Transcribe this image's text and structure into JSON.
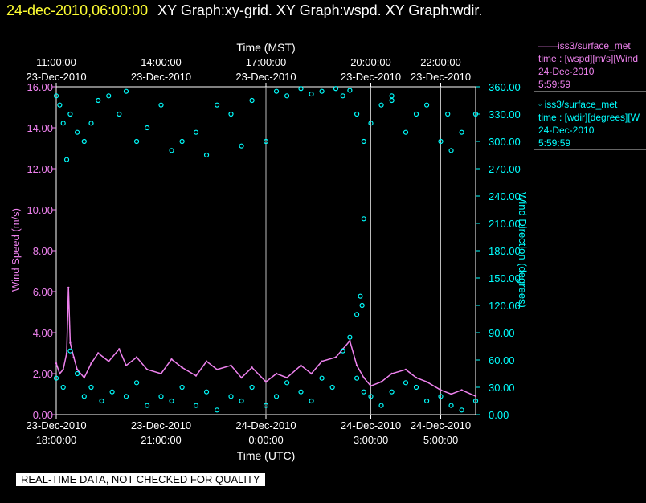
{
  "header": {
    "timestamp": "24-dec-2010,06:00:00",
    "graphs": "XY Graph:xy-grid.  XY Graph:wspd.  XY Graph:wdir."
  },
  "legend": [
    {
      "line1": "iss3/surface_met",
      "line2": "time : [wspd][m/s][Wind",
      "line3": "24-Dec-2010",
      "line4": "5:59:59",
      "color": "#ee82ee",
      "marker": "line"
    },
    {
      "line1": "iss3/surface_met",
      "line2": "time : [wdir][degrees][W",
      "line3": "24-Dec-2010",
      "line4": "5:59:59",
      "color": "#00ffff",
      "marker": "circle"
    }
  ],
  "quality_note": "REAL-TIME DATA, NOT CHECKED FOR QUALITY",
  "chart_data": {
    "type": "line",
    "title": "",
    "top_xlabel": "Time (MST)",
    "xlabel": "Time (UTC)",
    "ylabel": "Wind Speed (m/s)",
    "y2label": "Wind Direction (degrees)",
    "xlim_hours": [
      0,
      12
    ],
    "ylim": [
      0,
      16
    ],
    "y2lim": [
      0,
      360
    ],
    "grid": "vertical",
    "yticks": [
      "0.00",
      "2.00",
      "4.00",
      "6.00",
      "8.00",
      "10.00",
      "12.00",
      "14.00",
      "16.00"
    ],
    "y2ticks": [
      "0.00",
      "30.00",
      "60.00",
      "90.00",
      "120.00",
      "150.00",
      "180.00",
      "210.00",
      "240.00",
      "270.00",
      "300.00",
      "330.00",
      "360.00"
    ],
    "bottom_ticks": [
      {
        "h": 0,
        "date": "23-Dec-2010",
        "time": "18:00:00"
      },
      {
        "h": 3,
        "date": "23-Dec-2010",
        "time": "21:00:00"
      },
      {
        "h": 6,
        "date": "24-Dec-2010",
        "time": "0:00:00"
      },
      {
        "h": 9,
        "date": "24-Dec-2010",
        "time": "3:00:00"
      },
      {
        "h": 11,
        "date": "24-Dec-2010",
        "time": "5:00:00"
      }
    ],
    "top_ticks": [
      {
        "h": 0,
        "date": "23-Dec-2010",
        "time": "11:00:00"
      },
      {
        "h": 3,
        "date": "23-Dec-2010",
        "time": "14:00:00"
      },
      {
        "h": 6,
        "date": "23-Dec-2010",
        "time": "17:00:00"
      },
      {
        "h": 9,
        "date": "23-Dec-2010",
        "time": "20:00:00"
      },
      {
        "h": 11,
        "date": "23-Dec-2010",
        "time": "22:00:00"
      }
    ],
    "series": [
      {
        "axis": "left",
        "color": "#ee82ee",
        "marker": "line",
        "x": [
          0.0,
          0.1,
          0.2,
          0.3,
          0.35,
          0.4,
          0.5,
          0.6,
          0.8,
          1.0,
          1.2,
          1.5,
          1.8,
          2.0,
          2.3,
          2.6,
          3.0,
          3.3,
          3.6,
          4.0,
          4.3,
          4.6,
          5.0,
          5.3,
          5.6,
          6.0,
          6.3,
          6.6,
          7.0,
          7.3,
          7.6,
          8.0,
          8.2,
          8.4,
          8.6,
          8.8,
          9.0,
          9.3,
          9.6,
          10.0,
          10.3,
          10.6,
          11.0,
          11.3,
          11.6,
          12.0
        ],
        "y": [
          2.5,
          2.0,
          2.2,
          3.0,
          6.2,
          3.5,
          2.8,
          2.2,
          1.8,
          2.5,
          3.0,
          2.6,
          3.2,
          2.4,
          2.8,
          2.2,
          2.0,
          2.7,
          2.3,
          1.9,
          2.6,
          2.2,
          2.4,
          1.8,
          2.3,
          1.6,
          2.0,
          1.8,
          2.4,
          2.0,
          2.6,
          2.8,
          3.2,
          3.6,
          2.4,
          1.8,
          1.4,
          1.6,
          2.0,
          2.2,
          1.8,
          1.6,
          1.2,
          1.0,
          1.2,
          0.9
        ]
      },
      {
        "axis": "right",
        "color": "#00ffff",
        "marker": "circle",
        "groups": [
          {
            "x": [
              0.0,
              0.1,
              0.2,
              0.3,
              0.4,
              0.6,
              0.8,
              1.0,
              1.2,
              1.5,
              1.8,
              2.0,
              2.3,
              2.6,
              3.0,
              3.3,
              3.6,
              4.0,
              4.3,
              4.6,
              5.0,
              5.3,
              5.6,
              6.0,
              6.3,
              6.6,
              7.0,
              7.3,
              7.6,
              8.0,
              8.2,
              8.4,
              8.6,
              8.8,
              9.0,
              9.3,
              9.6,
              10.0,
              10.3,
              10.6,
              11.0,
              11.3,
              11.6,
              12.0
            ],
            "y": [
              350,
              340,
              320,
              280,
              330,
              310,
              300,
              320,
              345,
              350,
              330,
              355,
              300,
              315,
              340,
              290,
              300,
              310,
              285,
              340,
              330,
              295,
              345,
              300,
              355,
              350,
              358,
              352,
              355,
              358,
              350,
              356,
              330,
              300,
              320,
              340,
              345,
              310,
              330,
              340,
              300,
              290,
              310,
              330
            ]
          },
          {
            "x": [
              0.0,
              0.2,
              0.4,
              0.6,
              0.8,
              1.0,
              1.3,
              1.6,
              2.0,
              2.3,
              2.6,
              3.0,
              3.3,
              3.6,
              4.0,
              4.3,
              4.6,
              5.0,
              5.3,
              5.6,
              6.0,
              6.3,
              6.6,
              7.0,
              7.3,
              7.6,
              7.9,
              8.2,
              8.4,
              8.6,
              8.8,
              9.0,
              9.3,
              9.6,
              10.0,
              10.3,
              10.6,
              11.0,
              11.3,
              11.6,
              12.0
            ],
            "y": [
              40,
              30,
              70,
              45,
              20,
              30,
              15,
              25,
              20,
              35,
              10,
              20,
              15,
              30,
              10,
              25,
              5,
              20,
              15,
              30,
              10,
              20,
              35,
              25,
              15,
              40,
              30,
              70,
              85,
              40,
              25,
              20,
              10,
              25,
              35,
              30,
              15,
              20,
              10,
              5,
              15
            ]
          },
          {
            "x": [
              8.6,
              8.7,
              8.75,
              8.8,
              9.6,
              11.2
            ],
            "y": [
              110,
              130,
              120,
              215,
              350,
              330
            ]
          }
        ]
      }
    ]
  }
}
